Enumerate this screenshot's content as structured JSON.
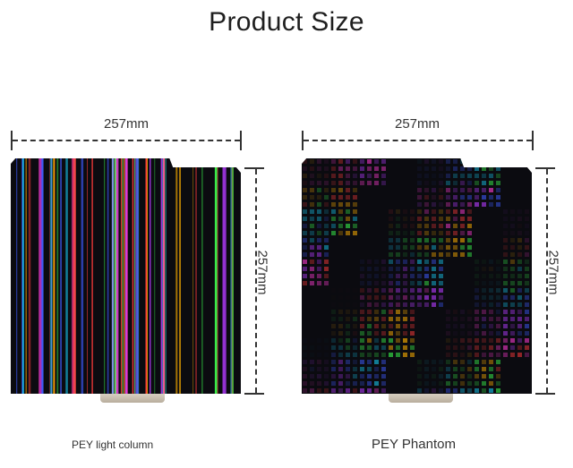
{
  "title": "Product Size",
  "products": [
    {
      "name": "PEY light column",
      "width_label": "257mm",
      "height_label": "257mm",
      "texture": "vertical-rainbow-stripes"
    },
    {
      "name": "PEY Phantom",
      "width_label": "257mm",
      "height_label": "257mm",
      "texture": "holographic-patchwork"
    }
  ],
  "colors": {
    "plate_base": "#0b0b10",
    "rainbow": [
      "#ff3b3b",
      "#ffb000",
      "#3bff4e",
      "#18d6ff",
      "#3f5bff",
      "#b43bff",
      "#ff3bd2"
    ]
  }
}
